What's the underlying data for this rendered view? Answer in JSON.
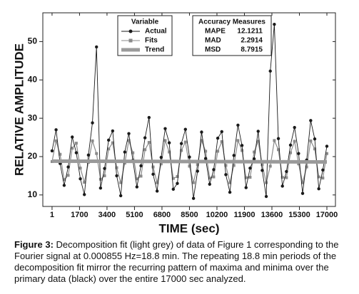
{
  "chart_data": {
    "type": "line",
    "xlabel": "TIME (sec)",
    "ylabel": "RELATIVE AMPLITUDE",
    "xlim": [
      -570,
      17530
    ],
    "ylim": [
      7,
      57.5
    ],
    "xticks": [
      1,
      1700,
      3400,
      5100,
      6800,
      8500,
      10200,
      11900,
      13600,
      15300,
      17000
    ],
    "yticks": [
      10,
      20,
      30,
      40,
      50
    ],
    "legend_title": "Variable",
    "x": [
      1,
      250,
      500,
      750,
      1000,
      1250,
      1500,
      1750,
      2000,
      2250,
      2500,
      2750,
      3000,
      3250,
      3500,
      3750,
      4000,
      4250,
      4500,
      4750,
      5000,
      5250,
      5500,
      5750,
      6000,
      6250,
      6500,
      6750,
      7000,
      7250,
      7500,
      7750,
      8000,
      8250,
      8500,
      8750,
      9000,
      9250,
      9500,
      9750,
      10000,
      10250,
      10500,
      10750,
      11000,
      11250,
      11500,
      11750,
      12000,
      12250,
      12500,
      12750,
      13000,
      13250,
      13500,
      13750,
      14000,
      14250,
      14500,
      14750,
      15000,
      15250,
      15500,
      15750,
      16000,
      16250,
      16500,
      16750,
      17000
    ],
    "series": [
      {
        "name": "Actual",
        "color": "#1a1a1a",
        "marker": "circle",
        "values": [
          21.5,
          27.0,
          18.2,
          12.5,
          17.3,
          25.1,
          21.0,
          14.2,
          10.1,
          20.4,
          28.8,
          48.6,
          11.8,
          16.9,
          24.3,
          26.7,
          15.0,
          9.8,
          21.2,
          26.0,
          19.0,
          12.1,
          17.6,
          24.9,
          30.2,
          15.4,
          11.0,
          19.8,
          27.3,
          23.6,
          11.5,
          13.0,
          23.4,
          27.1,
          19.9,
          9.1,
          16.2,
          26.4,
          19.5,
          12.8,
          16.6,
          24.8,
          26.5,
          15.3,
          10.7,
          20.3,
          28.2,
          22.9,
          11.9,
          17.0,
          19.4,
          26.6,
          16.4,
          9.6,
          42.3,
          54.5,
          24.7,
          12.3,
          16.1,
          23.0,
          27.6,
          20.8,
          10.4,
          19.1,
          29.4,
          24.6,
          11.6,
          16.5,
          22.7
        ]
      },
      {
        "name": "Fits",
        "color": "#8a8a8a",
        "marker": "square",
        "values": [
          18.7,
          24.1,
          20.6,
          14.0,
          15.1,
          22.2,
          23.5,
          17.0,
          13.3,
          18.5,
          24.1,
          20.8,
          14.1,
          15.0,
          22.0,
          23.6,
          17.1,
          13.2,
          18.3,
          24.2,
          21.0,
          14.2,
          14.9,
          21.8,
          23.7,
          17.3,
          13.2,
          18.1,
          24.2,
          21.2,
          14.3,
          14.8,
          21.6,
          23.8,
          17.5,
          13.2,
          17.9,
          24.2,
          21.4,
          14.4,
          14.7,
          21.4,
          23.9,
          17.7,
          13.2,
          17.7,
          24.2,
          21.6,
          14.5,
          14.6,
          21.2,
          24.0,
          17.9,
          13.2,
          17.5,
          24.2,
          21.8,
          14.6,
          14.5,
          21.0,
          24.0,
          18.1,
          13.2,
          17.3,
          24.1,
          22.0,
          14.7,
          14.4,
          20.8
        ]
      },
      {
        "name": "Trend",
        "color": "#9a9a9a",
        "marker": "bar",
        "x": [
          1,
          17000
        ],
        "values": [
          18.8,
          18.6
        ]
      }
    ],
    "accuracy": {
      "title": "Accuracy Measures",
      "rows": [
        [
          "MAPE",
          12.1211
        ],
        [
          "MAD",
          2.2914
        ],
        [
          "MSD",
          8.7915
        ]
      ]
    }
  },
  "caption": {
    "label": "Figure 3:",
    "text": " Decomposition fit (light grey) of data of Figure 1 corresponding to the Fourier signal at 0.000855 Hz=18.8 min. The repeating 18.8 min periods of the decomposition fit mirror the recurring pattern of maxima and minima over the primary data (black) over the entire 17000 sec analyzed."
  }
}
